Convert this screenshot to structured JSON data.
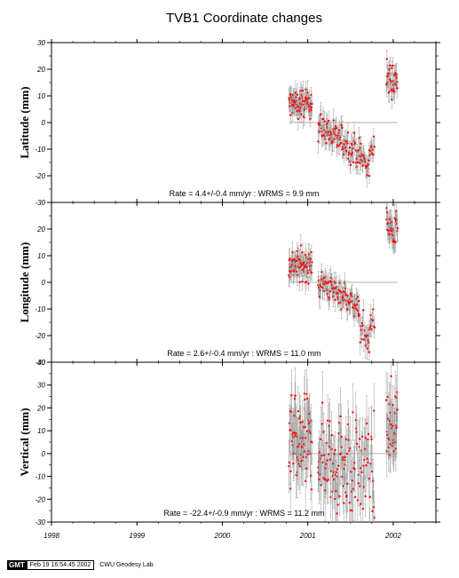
{
  "chart_data": {
    "type": "scatter",
    "title": "TVB1 Coordinate changes",
    "x_ticks": [
      "1998",
      "1999",
      "2000",
      "2001",
      "2002"
    ],
    "xlim": [
      1998.0,
      2002.5
    ],
    "colors": {
      "points": "#ff0000",
      "error_bars": "#999999",
      "reference_line": "#999999",
      "frame": "#000000"
    },
    "panels": [
      {
        "ylabel": "Latitude (mm)",
        "ylim": [
          -30,
          30
        ],
        "y_ticks": [
          "30",
          "20",
          "10",
          "0",
          "-10",
          "-20",
          "-30"
        ],
        "stats": "Rate = 4.4+/-0.4 mm/yr : WRMS = 9.9 mm",
        "reference_line": {
          "y": 0,
          "x_range": [
            2000.78,
            2002.05
          ]
        },
        "segments": [
          {
            "x_range": [
              2000.78,
              2001.05
            ],
            "y_start": 7,
            "y_end": 7,
            "scatter": 2.5,
            "error": 3.5,
            "n": 80
          },
          {
            "x_range": [
              2001.12,
              2001.45
            ],
            "y_start": -1,
            "y_end": -8,
            "scatter": 3,
            "error": 3.5,
            "n": 70
          },
          {
            "x_range": [
              2001.45,
              2001.62
            ],
            "y_start": -8,
            "y_end": -12,
            "scatter": 3,
            "error": 3.5,
            "n": 35
          },
          {
            "x_range": [
              2001.62,
              2001.72
            ],
            "y_start": -12,
            "y_end": -19,
            "scatter": 3,
            "error": 3.5,
            "n": 18
          },
          {
            "x_range": [
              2001.72,
              2001.78
            ],
            "y_start": -11,
            "y_end": -9,
            "scatter": 2.5,
            "error": 3.5,
            "n": 10
          },
          {
            "x_range": [
              2001.92,
              2002.05
            ],
            "y_start": 16,
            "y_end": 16,
            "scatter": 3,
            "error": 3.5,
            "n": 35
          }
        ]
      },
      {
        "ylabel": "Longitude (mm)",
        "ylim": [
          -30,
          30
        ],
        "y_ticks": [
          "20",
          "10",
          "0",
          "-10",
          "-20",
          "-30"
        ],
        "stats": "Rate = 2.6+/-0.4 mm/yr : WRMS = 11.0 mm",
        "reference_line": {
          "y": 0,
          "x_range": [
            2000.78,
            2002.05
          ]
        },
        "segments": [
          {
            "x_range": [
              2000.78,
              2001.05
            ],
            "y_start": 7,
            "y_end": 6,
            "scatter": 3,
            "error": 3.5,
            "n": 80
          },
          {
            "x_range": [
              2001.12,
              2001.45
            ],
            "y_start": 0,
            "y_end": -5,
            "scatter": 2.5,
            "error": 3.5,
            "n": 70
          },
          {
            "x_range": [
              2001.45,
              2001.6
            ],
            "y_start": -6,
            "y_end": -10,
            "scatter": 2,
            "error": 3.5,
            "n": 30
          },
          {
            "x_range": [
              2001.6,
              2001.72
            ],
            "y_start": -14,
            "y_end": -24,
            "scatter": 3,
            "error": 4,
            "n": 20
          },
          {
            "x_range": [
              2001.72,
              2001.78
            ],
            "y_start": -16,
            "y_end": -14,
            "scatter": 2,
            "error": 3.5,
            "n": 10
          },
          {
            "x_range": [
              2001.92,
              2002.05
            ],
            "y_start": 22,
            "y_end": 17,
            "scatter": 4,
            "error": 4,
            "n": 35
          }
        ]
      },
      {
        "ylabel": "Vertical (mm)",
        "ylim": [
          -30,
          40
        ],
        "y_ticks": [
          "40",
          "30",
          "20",
          "10",
          "0",
          "-10",
          "-20",
          "-30"
        ],
        "stats": "Rate = -22.4+/-0.9 mm/yr : WRMS = 11.2 mm",
        "reference_line": {
          "y": 0,
          "x_range": [
            2000.78,
            2002.05
          ]
        },
        "segments": [
          {
            "x_range": [
              2000.78,
              2001.05
            ],
            "y_start": 4,
            "y_end": 4,
            "scatter": 10,
            "error": 10,
            "n": 75
          },
          {
            "x_range": [
              2001.12,
              2001.45
            ],
            "y_start": 0,
            "y_end": -4,
            "scatter": 11,
            "error": 11,
            "n": 70
          },
          {
            "x_range": [
              2001.45,
              2001.78
            ],
            "y_start": -4,
            "y_end": -10,
            "scatter": 11,
            "error": 11,
            "n": 60
          },
          {
            "x_range": [
              2001.92,
              2002.05
            ],
            "y_start": 12,
            "y_end": 12,
            "scatter": 9,
            "error": 10,
            "n": 35
          }
        ]
      }
    ]
  },
  "footer": {
    "badge": "GMT",
    "timestamp": "Feb 19 16:54:45 2002",
    "lab": "CWU Geodesy Lab"
  }
}
